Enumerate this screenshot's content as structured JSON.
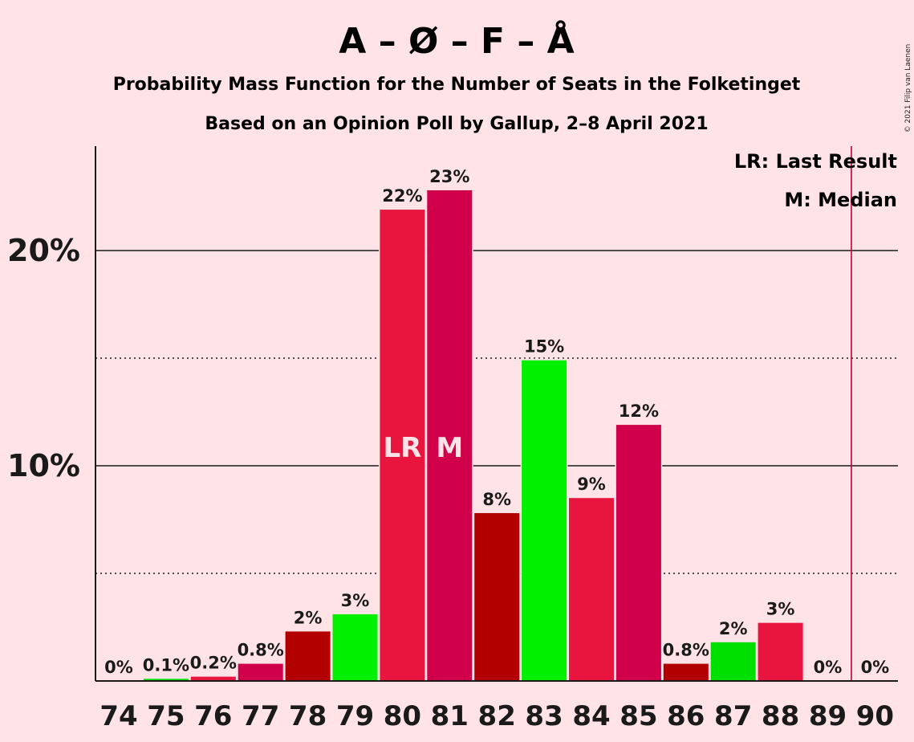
{
  "copyright": "© 2021 Filip van Laenen",
  "chart_data": {
    "type": "bar",
    "title": "A – Ø – F – Å",
    "subtitle": "Probability Mass Function for the Number of Seats in the Folketinget",
    "subtitle2": "Based on an Opinion Poll by Gallup, 2–8 April 2021",
    "legend": {
      "placement": "top-right",
      "lr": "LR: Last Result",
      "median": "M: Median"
    },
    "categories": [
      "74",
      "75",
      "76",
      "77",
      "78",
      "79",
      "80",
      "81",
      "82",
      "83",
      "84",
      "85",
      "86",
      "87",
      "88",
      "89",
      "90"
    ],
    "values": [
      0,
      0.1,
      0.2,
      0.8,
      2.3,
      3.1,
      21.9,
      22.8,
      7.8,
      14.9,
      8.5,
      11.9,
      0.8,
      1.8,
      2.7,
      0,
      0
    ],
    "labels": [
      "0%",
      "0.1%",
      "0.2%",
      "0.8%",
      "2%",
      "3%",
      "22%",
      "23%",
      "8%",
      "15%",
      "9%",
      "12%",
      "0.8%",
      "2%",
      "3%",
      "0%",
      "0%"
    ],
    "bar_colors": [
      "#e8163e",
      "#00e000",
      "#e8163e",
      "#d0004b",
      "#b20000",
      "#00f000",
      "#e8163e",
      "#d0004b",
      "#b20000",
      "#00f000",
      "#e8163e",
      "#d0004b",
      "#b20000",
      "#00e000",
      "#e8163e",
      "#d0004b",
      "#b20000"
    ],
    "bar_annotations": [
      {
        "category": "80",
        "text": "LR"
      },
      {
        "category": "81",
        "text": "M"
      }
    ],
    "yticks": [
      {
        "value": 10,
        "label": "10%"
      },
      {
        "value": 20,
        "label": "20%"
      }
    ],
    "minor_gridlines": [
      5,
      15
    ],
    "ylim": [
      0,
      24.7
    ],
    "majority_line": {
      "x": 89.5,
      "color": "#c0003c"
    },
    "colors": {
      "background": "#ffe3e6",
      "axis": "#1a1a1a",
      "grid": "#1a1a1a",
      "annotation_text": "#ffe3e6"
    }
  }
}
